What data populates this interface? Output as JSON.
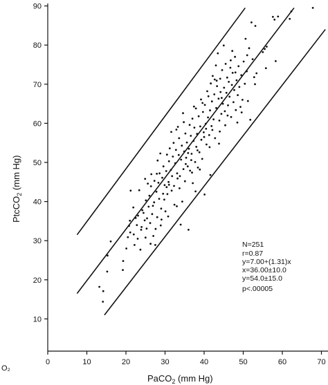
{
  "edge_fragment": "O₂",
  "stats": [
    "N=251",
    "r=0.87",
    "y=7.00+(1.31)x",
    "x=36.00±10.0",
    "y=54.0±15.0",
    "p<.00005"
  ],
  "chart_data": {
    "type": "scatter",
    "title": "",
    "xlabel_main": "PaCO",
    "xlabel_sub": "2",
    "xlabel_unit": "(mm Hg)",
    "ylabel_main": "PtcCO",
    "ylabel_sub": "2",
    "ylabel_unit": "(mm Hg)",
    "xlim": [
      0,
      70
    ],
    "ylim": [
      0,
      90
    ],
    "xticks": [
      0,
      10,
      20,
      30,
      40,
      50,
      60,
      70
    ],
    "yticks": [
      10,
      20,
      30,
      40,
      50,
      60,
      70,
      80,
      90
    ],
    "grid": false,
    "lines": [
      {
        "name": "regression",
        "x": [
          7.5,
          63.0
        ],
        "y": [
          16.5,
          89.5
        ]
      },
      {
        "name": "upper",
        "x": [
          7.5,
          50.5
        ],
        "y": [
          31.5,
          89.5
        ]
      },
      {
        "name": "lower",
        "x": [
          14.5,
          71.0
        ],
        "y": [
          11.0,
          84.0
        ]
      }
    ],
    "points": [
      [
        13.2,
        18.2
      ],
      [
        14.1,
        14.4
      ],
      [
        14.2,
        17.1
      ],
      [
        15.2,
        22.1
      ],
      [
        15.3,
        26.2
      ],
      [
        16.1,
        29.8
      ],
      [
        19.2,
        22.5
      ],
      [
        19.3,
        24.8
      ],
      [
        20.1,
        28.0
      ],
      [
        20.8,
        33.8
      ],
      [
        21.0,
        35.1
      ],
      [
        21.1,
        32.1
      ],
      [
        21.2,
        42.8
      ],
      [
        21.9,
        38.5
      ],
      [
        22.2,
        28.9
      ],
      [
        22.5,
        35.8
      ],
      [
        23.0,
        30.5
      ],
      [
        23.1,
        36.4
      ],
      [
        23.4,
        42.9
      ],
      [
        23.9,
        32.8
      ],
      [
        24.0,
        33.5
      ],
      [
        24.2,
        37.8
      ],
      [
        24.8,
        35.2
      ],
      [
        25.0,
        30.8
      ],
      [
        25.1,
        40.3
      ],
      [
        25.3,
        33.1
      ],
      [
        25.8,
        38.7
      ],
      [
        26.0,
        41.5
      ],
      [
        26.2,
        34.5
      ],
      [
        26.4,
        43.9
      ],
      [
        26.5,
        47.0
      ],
      [
        26.7,
        36.8
      ],
      [
        27.0,
        31.2
      ],
      [
        27.2,
        39.8
      ],
      [
        27.3,
        45.3
      ],
      [
        27.5,
        28.9
      ],
      [
        27.8,
        42.5
      ],
      [
        27.9,
        47.1
      ],
      [
        28.0,
        36.0
      ],
      [
        28.3,
        44.8
      ],
      [
        28.5,
        40.7
      ],
      [
        28.6,
        47.2
      ],
      [
        28.9,
        33.9
      ],
      [
        29.0,
        38.2
      ],
      [
        29.3,
        46.1
      ],
      [
        29.5,
        42.0
      ],
      [
        29.6,
        49.0
      ],
      [
        29.9,
        44.2
      ],
      [
        30.1,
        37.5
      ],
      [
        30.3,
        47.8
      ],
      [
        30.5,
        52.0
      ],
      [
        30.6,
        41.9
      ],
      [
        30.9,
        45.0
      ],
      [
        31.0,
        50.3
      ],
      [
        31.2,
        53.6
      ],
      [
        31.5,
        48.1
      ],
      [
        31.7,
        42.8
      ],
      [
        31.8,
        46.5
      ],
      [
        32.0,
        51.5
      ],
      [
        32.2,
        55.0
      ],
      [
        32.3,
        44.0
      ],
      [
        32.6,
        49.8
      ],
      [
        32.8,
        53.2
      ],
      [
        33.0,
        38.8
      ],
      [
        33.1,
        47.2
      ],
      [
        33.3,
        59.1
      ],
      [
        33.5,
        51.9
      ],
      [
        33.6,
        56.2
      ],
      [
        33.8,
        46.5
      ],
      [
        34.0,
        34.1
      ],
      [
        34.1,
        50.7
      ],
      [
        34.3,
        54.3
      ],
      [
        34.6,
        62.6
      ],
      [
        34.7,
        48.3
      ],
      [
        34.9,
        52.8
      ],
      [
        35.1,
        45.2
      ],
      [
        35.2,
        57.4
      ],
      [
        35.4,
        51.2
      ],
      [
        35.6,
        55.1
      ],
      [
        35.8,
        49.0
      ],
      [
        36.0,
        32.8
      ],
      [
        36.1,
        53.5
      ],
      [
        36.3,
        59.6
      ],
      [
        36.4,
        47.9
      ],
      [
        36.6,
        56.8
      ],
      [
        36.8,
        52.2
      ],
      [
        37.0,
        61.2
      ],
      [
        37.1,
        44.7
      ],
      [
        37.3,
        55.5
      ],
      [
        37.5,
        58.9
      ],
      [
        37.7,
        50.1
      ],
      [
        37.9,
        63.8
      ],
      [
        38.0,
        54.0
      ],
      [
        38.2,
        57.3
      ],
      [
        38.4,
        48.7
      ],
      [
        38.6,
        61.8
      ],
      [
        38.8,
        52.6
      ],
      [
        39.0,
        59.2
      ],
      [
        39.2,
        66.1
      ],
      [
        39.3,
        55.8
      ],
      [
        39.5,
        50.9
      ],
      [
        39.7,
        62.9
      ],
      [
        39.9,
        57.7
      ],
      [
        40.1,
        41.8
      ],
      [
        40.2,
        64.7
      ],
      [
        40.4,
        59.9
      ],
      [
        40.6,
        54.6
      ],
      [
        40.8,
        68.2
      ],
      [
        41.0,
        61.5
      ],
      [
        41.1,
        66.9
      ],
      [
        41.3,
        57.0
      ],
      [
        41.5,
        63.3
      ],
      [
        41.7,
        70.2
      ],
      [
        41.9,
        59.3
      ],
      [
        42.0,
        65.6
      ],
      [
        42.2,
        72.1
      ],
      [
        42.4,
        61.0
      ],
      [
        42.6,
        67.4
      ],
      [
        42.8,
        56.2
      ],
      [
        43.0,
        74.8
      ],
      [
        43.1,
        63.9
      ],
      [
        43.3,
        69.5
      ],
      [
        43.5,
        77.9
      ],
      [
        43.7,
        66.3
      ],
      [
        43.9,
        60.7
      ],
      [
        44.1,
        71.4
      ],
      [
        44.2,
        68.0
      ],
      [
        44.4,
        62.4
      ],
      [
        44.6,
        73.6
      ],
      [
        44.8,
        65.0
      ],
      [
        45.0,
        79.9
      ],
      [
        45.1,
        69.1
      ],
      [
        45.3,
        63.1
      ],
      [
        45.5,
        75.2
      ],
      [
        45.7,
        67.8
      ],
      [
        45.9,
        71.7
      ],
      [
        46.1,
        64.6
      ],
      [
        46.3,
        70.6
      ],
      [
        46.5,
        66.8
      ],
      [
        46.7,
        74.2
      ],
      [
        46.9,
        61.6
      ],
      [
        47.1,
        69.8
      ],
      [
        47.3,
        72.9
      ],
      [
        47.5,
        65.4
      ],
      [
        47.7,
        68.5
      ],
      [
        47.9,
        77.0
      ],
      [
        48.1,
        63.4
      ],
      [
        48.3,
        71.0
      ],
      [
        48.6,
        67.2
      ],
      [
        48.8,
        74.6
      ],
      [
        49.0,
        69.3
      ],
      [
        49.3,
        64.2
      ],
      [
        49.5,
        72.3
      ],
      [
        49.8,
        66.0
      ],
      [
        50.1,
        75.8
      ],
      [
        50.4,
        70.1
      ],
      [
        50.6,
        81.6
      ],
      [
        50.9,
        73.3
      ],
      [
        51.2,
        65.7
      ],
      [
        51.5,
        79.2
      ],
      [
        51.8,
        60.9
      ],
      [
        52.1,
        85.8
      ],
      [
        52.4,
        76.4
      ],
      [
        52.8,
        71.8
      ],
      [
        53.1,
        84.9
      ],
      [
        53.4,
        72.8
      ],
      [
        55.0,
        78.2
      ],
      [
        55.5,
        79.0
      ],
      [
        56.0,
        79.6
      ],
      [
        57.6,
        87.2
      ],
      [
        58.0,
        86.5
      ],
      [
        58.3,
        75.9
      ],
      [
        58.9,
        87.3
      ],
      [
        61.9,
        86.7
      ],
      [
        62.3,
        88.6
      ],
      [
        67.8,
        89.5
      ],
      [
        22.8,
        34.0
      ],
      [
        24.5,
        37.1
      ],
      [
        26.9,
        38.9
      ],
      [
        29.8,
        40.5
      ],
      [
        31.0,
        44.3
      ],
      [
        33.2,
        45.9
      ],
      [
        35.3,
        49.6
      ],
      [
        36.7,
        50.6
      ],
      [
        38.3,
        53.1
      ],
      [
        40.0,
        56.5
      ],
      [
        42.1,
        58.3
      ],
      [
        44.0,
        57.9
      ],
      [
        46.0,
        62.0
      ],
      [
        48.5,
        60.2
      ],
      [
        27.6,
        33.0
      ],
      [
        30.8,
        36.2
      ],
      [
        34.4,
        40.0
      ],
      [
        37.8,
        42.6
      ],
      [
        41.6,
        46.8
      ],
      [
        25.6,
        44.6
      ],
      [
        28.1,
        50.5
      ],
      [
        31.6,
        57.8
      ],
      [
        34.8,
        60.3
      ],
      [
        39.6,
        65.2
      ],
      [
        43.2,
        70.9
      ],
      [
        47.2,
        78.5
      ],
      [
        20.5,
        30.9
      ],
      [
        23.7,
        27.7
      ],
      [
        26.3,
        29.2
      ],
      [
        32.4,
        39.2
      ],
      [
        36.9,
        47.4
      ],
      [
        41.4,
        53.9
      ],
      [
        45.4,
        59.5
      ],
      [
        49.6,
        62.8
      ],
      [
        53.0,
        70.0
      ],
      [
        55.8,
        74.1
      ],
      [
        29.1,
        35.4
      ],
      [
        33.7,
        43.4
      ],
      [
        38.9,
        48.2
      ],
      [
        43.8,
        54.8
      ],
      [
        24.9,
        45.8
      ],
      [
        28.8,
        52.3
      ],
      [
        32.9,
        58.4
      ],
      [
        37.4,
        64.3
      ],
      [
        42.7,
        71.2
      ],
      [
        46.8,
        76.1
      ],
      [
        22.0,
        31.6
      ],
      [
        25.4,
        35.7
      ],
      [
        30.4,
        43.7
      ],
      [
        35.9,
        52.4
      ],
      [
        40.5,
        58.6
      ],
      [
        44.5,
        66.5
      ],
      [
        48.0,
        73.0
      ],
      [
        51.0,
        77.4
      ]
    ]
  }
}
